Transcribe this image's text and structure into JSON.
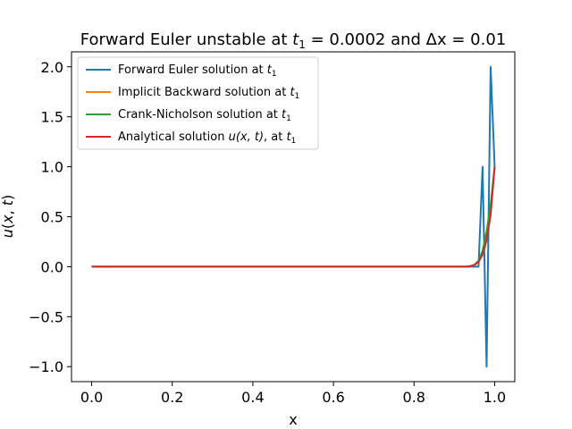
{
  "chart_data": {
    "type": "line",
    "title": "Forward Euler unstable at t₁ = 0.0002 and Δx = 0.01",
    "title_parts": {
      "prefix": "Forward Euler unstable at ",
      "t_sym": "t",
      "t_sub": "1",
      "t_value": " = 0.0002",
      "middle": " and ",
      "dx_sym": "Δx",
      "dx_value": " = 0.01"
    },
    "xlabel": "x",
    "ylabel_parts": {
      "u": "u",
      "open": "(",
      "x": "x",
      "comma": ", ",
      "t": "t",
      "close": ")"
    },
    "xlim": [
      -0.05,
      1.05
    ],
    "ylim": [
      -1.15,
      2.15
    ],
    "xticks": [
      0.0,
      0.2,
      0.4,
      0.6,
      0.8,
      1.0
    ],
    "xtick_labels": [
      "0.0",
      "0.2",
      "0.4",
      "0.6",
      "0.8",
      "1.0"
    ],
    "yticks": [
      -1.0,
      -0.5,
      0.0,
      0.5,
      1.0,
      1.5,
      2.0
    ],
    "ytick_labels": [
      "−1.0",
      "−0.5",
      "0.0",
      "0.5",
      "1.0",
      "1.5",
      "2.0"
    ],
    "grid": false,
    "legend_position": "top-left",
    "series": [
      {
        "name": "Forward Euler solution at t₁",
        "legend_text": "Forward Euler solution at ",
        "color": "#1f77b4",
        "x": [
          0.0,
          0.93,
          0.94,
          0.95,
          0.96,
          0.97,
          0.98,
          0.99,
          1.0
        ],
        "y": [
          0.0,
          0.0,
          0.0,
          0.0,
          0.0,
          1.0,
          -1.0,
          2.0,
          1.0
        ]
      },
      {
        "name": "Implicit Backward solution at t₁",
        "legend_text": "Implicit Backward solution at ",
        "color": "#ff7f0e",
        "x": [
          0.0,
          0.9,
          0.91,
          0.92,
          0.93,
          0.94,
          0.95,
          0.96,
          0.97,
          0.98,
          0.99,
          1.0
        ],
        "y": [
          0.0,
          0.0,
          0.0,
          0.0,
          0.001,
          0.004,
          0.015,
          0.05,
          0.13,
          0.3,
          0.58,
          1.0
        ]
      },
      {
        "name": "Crank-Nicholson solution at t₁",
        "legend_text": "Crank-Nicholson solution at ",
        "color": "#2ca02c",
        "x": [
          0.0,
          0.9,
          0.91,
          0.92,
          0.93,
          0.94,
          0.95,
          0.96,
          0.97,
          0.98,
          0.99,
          1.0
        ],
        "y": [
          0.0,
          0.0,
          0.0,
          0.0,
          0.002,
          0.007,
          0.02,
          0.06,
          0.16,
          0.35,
          0.62,
          1.0
        ]
      },
      {
        "name": "Analytical solution u(x,t), at t₁",
        "legend_text": "Analytical solution ",
        "legend_math": "u(x, t)",
        "legend_suffix": ", at ",
        "color": "#d62728",
        "x": [
          0.0,
          0.9,
          0.91,
          0.92,
          0.93,
          0.94,
          0.95,
          0.96,
          0.97,
          0.98,
          0.99,
          1.0
        ],
        "y": [
          0.0,
          0.0,
          0.0,
          0.0,
          0.001,
          0.005,
          0.017,
          0.05,
          0.12,
          0.26,
          0.52,
          1.0
        ]
      }
    ],
    "legend_t_sym": "t",
    "legend_t_sub": "1"
  }
}
